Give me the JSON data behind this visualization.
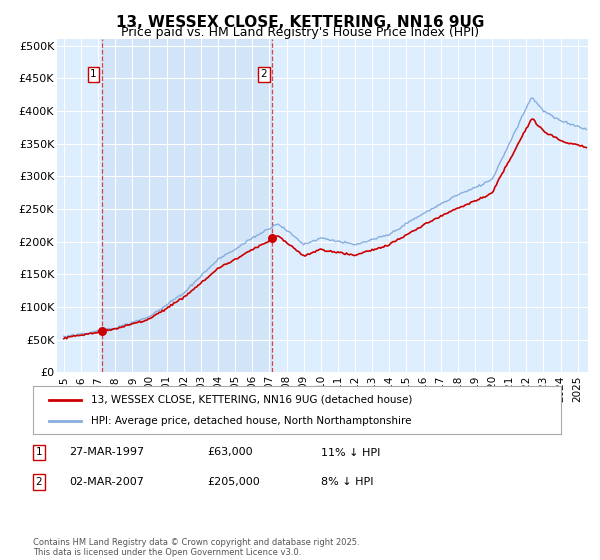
{
  "title": "13, WESSEX CLOSE, KETTERING, NN16 9UG",
  "subtitle": "Price paid vs. HM Land Registry's House Price Index (HPI)",
  "ylabel_ticks": [
    "£0",
    "£50K",
    "£100K",
    "£150K",
    "£200K",
    "£250K",
    "£300K",
    "£350K",
    "£400K",
    "£450K",
    "£500K"
  ],
  "ytick_values": [
    0,
    50000,
    100000,
    150000,
    200000,
    250000,
    300000,
    350000,
    400000,
    450000,
    500000
  ],
  "ylim": [
    0,
    510000
  ],
  "xlim_start": 1994.6,
  "xlim_end": 2025.6,
  "background_color": "#ffffff",
  "plot_bg_color": "#ddeeff",
  "grid_color": "#ffffff",
  "shade_color": "#c8dcf0",
  "sale1_x": 1997.23,
  "sale1_y": 63000,
  "sale1_label": "1",
  "sale1_date": "27-MAR-1997",
  "sale1_price": "£63,000",
  "sale1_hpi": "11% ↓ HPI",
  "sale2_x": 2007.17,
  "sale2_y": 205000,
  "sale2_label": "2",
  "sale2_date": "02-MAR-2007",
  "sale2_price": "£205,000",
  "sale2_hpi": "8% ↓ HPI",
  "line_red_color": "#cc0000",
  "line_blue_color": "#88aedd",
  "legend1": "13, WESSEX CLOSE, KETTERING, NN16 9UG (detached house)",
  "legend2": "HPI: Average price, detached house, North Northamptonshire",
  "footer": "Contains HM Land Registry data © Crown copyright and database right 2025.\nThis data is licensed under the Open Government Licence v3.0.",
  "title_fontsize": 11,
  "subtitle_fontsize": 9,
  "tick_fontsize": 8
}
